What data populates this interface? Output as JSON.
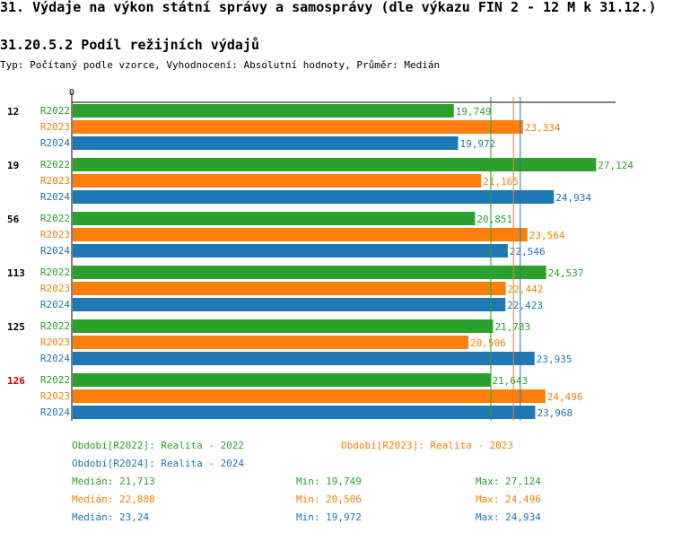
{
  "page": {
    "title": "31. Výdaje na výkon státní správy a samosprávy (dle výkazu FIN 2 - 12 M k 31.12.)",
    "subtitle": "31.20.5.2 Podíl režijních výdajů",
    "typ": "Typ: Počítaný podle vzorce, Vyhodnocení: Absolutní hodnoty, Průměr: Medián"
  },
  "colors": {
    "R2022": "#2ca02c",
    "R2023": "#ff7f0e",
    "R2024": "#1f77b4",
    "highlight": "#cc0000"
  },
  "chart_data": {
    "type": "bar",
    "orientation": "horizontal",
    "zero_label": "0",
    "xlim": [
      0,
      27.9
    ],
    "categories": [
      "12",
      "19",
      "56",
      "113",
      "125",
      "126"
    ],
    "highlight_category": "126",
    "series": [
      {
        "name": "R2022",
        "values": [
          19.749,
          27.124,
          20.851,
          24.537,
          21.783,
          21.643
        ],
        "labels": [
          "19,749",
          "27,124",
          "20,851",
          "24,537",
          "21,783",
          "21,643"
        ]
      },
      {
        "name": "R2023",
        "values": [
          23.334,
          21.165,
          23.564,
          22.442,
          20.506,
          24.496
        ],
        "labels": [
          "23,334",
          "21,165",
          "23,564",
          "22,442",
          "20,506",
          "24,496"
        ]
      },
      {
        "name": "R2024",
        "values": [
          19.972,
          24.934,
          22.546,
          22.423,
          23.935,
          23.968
        ],
        "labels": [
          "19,972",
          "24,934",
          "22,546",
          "22,423",
          "23,935",
          "23,968"
        ]
      }
    ],
    "median_lines": {
      "R2022": 21.713,
      "R2023": 22.888,
      "R2024": 23.24
    }
  },
  "legend": {
    "R2022": "Období[R2022]: Realita - 2022",
    "R2023": "Období[R2023]: Realita - 2023",
    "R2024": "Období[R2024]: Realita - 2024"
  },
  "stats": [
    {
      "series": "R2022",
      "median": "Medián: 21,713",
      "min": "Min: 19,749",
      "max": "Max: 27,124"
    },
    {
      "series": "R2023",
      "median": "Medián: 22,888",
      "min": "Min: 20,506",
      "max": "Max: 24,496"
    },
    {
      "series": "R2024",
      "median": "Medián: 23,24",
      "min": "Min: 19,972",
      "max": "Max: 24,934"
    }
  ]
}
